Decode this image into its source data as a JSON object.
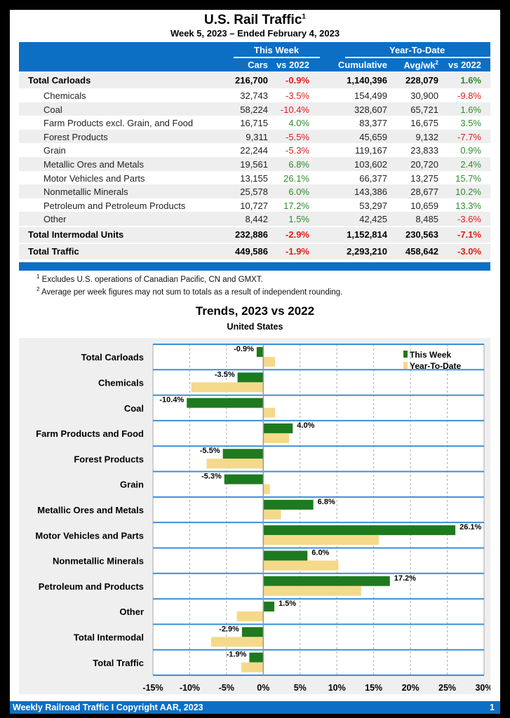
{
  "header": {
    "title": "U.S. Rail Traffic",
    "title_sup": "1",
    "subtitle": "Week 5, 2023 – Ended February 4, 2023"
  },
  "table": {
    "group_this_week": "This Week",
    "group_ytd": "Year-To-Date",
    "columns": [
      "Cars",
      "vs 2022",
      "Cumulative",
      "Avg/wk",
      "vs 2022"
    ],
    "avg_sup": "2",
    "rows": [
      {
        "label": "Total Carloads",
        "cars": "216,700",
        "vs": "-0.9%",
        "cum": "1,140,396",
        "avg": "228,079",
        "ytd_vs": "1.6%",
        "type": "total"
      },
      {
        "label": "Chemicals",
        "cars": "32,743",
        "vs": "-3.5%",
        "cum": "154,499",
        "avg": "30,900",
        "ytd_vs": "-9.8%",
        "type": "sub"
      },
      {
        "label": "Coal",
        "cars": "58,224",
        "vs": "-10.4%",
        "cum": "328,607",
        "avg": "65,721",
        "ytd_vs": "1.6%",
        "type": "sub"
      },
      {
        "label": "Farm Products excl. Grain, and Food",
        "cars": "16,715",
        "vs": "4.0%",
        "cum": "83,377",
        "avg": "16,675",
        "ytd_vs": "3.5%",
        "type": "sub"
      },
      {
        "label": "Forest Products",
        "cars": "9,311",
        "vs": "-5.5%",
        "cum": "45,659",
        "avg": "9,132",
        "ytd_vs": "-7.7%",
        "type": "sub"
      },
      {
        "label": "Grain",
        "cars": "22,244",
        "vs": "-5.3%",
        "cum": "119,167",
        "avg": "23,833",
        "ytd_vs": "0.9%",
        "type": "sub"
      },
      {
        "label": "Metallic Ores and Metals",
        "cars": "19,561",
        "vs": "6.8%",
        "cum": "103,602",
        "avg": "20,720",
        "ytd_vs": "2.4%",
        "type": "sub"
      },
      {
        "label": "Motor Vehicles and Parts",
        "cars": "13,155",
        "vs": "26.1%",
        "cum": "66,377",
        "avg": "13,275",
        "ytd_vs": "15.7%",
        "type": "sub"
      },
      {
        "label": "Nonmetallic Minerals",
        "cars": "25,578",
        "vs": "6.0%",
        "cum": "143,386",
        "avg": "28,677",
        "ytd_vs": "10.2%",
        "type": "sub"
      },
      {
        "label": "Petroleum and Petroleum Products",
        "cars": "10,727",
        "vs": "17.2%",
        "cum": "53,297",
        "avg": "10,659",
        "ytd_vs": "13.3%",
        "type": "sub"
      },
      {
        "label": "Other",
        "cars": "8,442",
        "vs": "1.5%",
        "cum": "42,425",
        "avg": "8,485",
        "ytd_vs": "-3.6%",
        "type": "sub"
      },
      {
        "label": "Total Intermodal Units",
        "cars": "232,886",
        "vs": "-2.9%",
        "cum": "1,152,814",
        "avg": "230,563",
        "ytd_vs": "-7.1%",
        "type": "total"
      },
      {
        "label": "Total Traffic",
        "cars": "449,586",
        "vs": "-1.9%",
        "cum": "2,293,210",
        "avg": "458,642",
        "ytd_vs": "-3.0%",
        "type": "total"
      }
    ]
  },
  "footnotes": [
    {
      "sup": "1",
      "text": "Excludes U.S. operations of Canadian Pacific, CN and GMXT."
    },
    {
      "sup": "2",
      "text": "Average per week figures may not sum to totals as a result of independent rounding."
    }
  ],
  "chart_data": {
    "type": "bar",
    "orientation": "horizontal",
    "title": "Trends, 2023 vs 2022",
    "subtitle": "United States",
    "categories": [
      "Total Carloads",
      "Chemicals",
      "Coal",
      "Farm Products and Food",
      "Forest Products",
      "Grain",
      "Metallic Ores and Metals",
      "Motor Vehicles and Parts",
      "Nonmetallic Minerals",
      "Petroleum and Products",
      "Other",
      "Total Intermodal",
      "Total Traffic"
    ],
    "series": [
      {
        "name": "This Week",
        "color": "#1e7a1e",
        "values": [
          -0.9,
          -3.5,
          -10.4,
          4.0,
          -5.5,
          -5.3,
          6.8,
          26.1,
          6.0,
          17.2,
          1.5,
          -2.9,
          -1.9
        ],
        "labels": [
          "-0.9%",
          "-3.5%",
          "-10.4%",
          "4.0%",
          "-5.5%",
          "-5.3%",
          "6.8%",
          "26.1%",
          "6.0%",
          "17.2%",
          "1.5%",
          "-2.9%",
          "-1.9%"
        ]
      },
      {
        "name": "Year-To-Date",
        "color": "#f5d98a",
        "values": [
          1.6,
          -9.8,
          1.6,
          3.5,
          -7.7,
          0.9,
          2.4,
          15.7,
          10.2,
          13.3,
          -3.6,
          -7.1,
          -3.0
        ]
      }
    ],
    "xlim": [
      -15,
      30
    ],
    "xticks": [
      "-15%",
      "-10%",
      "-5%",
      "0%",
      "5%",
      "10%",
      "15%",
      "20%",
      "25%",
      "30%"
    ],
    "legend": "top-right",
    "grid": true
  },
  "footer": {
    "left": "Weekly Railroad Traffic I Copyright AAR, 2023",
    "page": "1"
  }
}
